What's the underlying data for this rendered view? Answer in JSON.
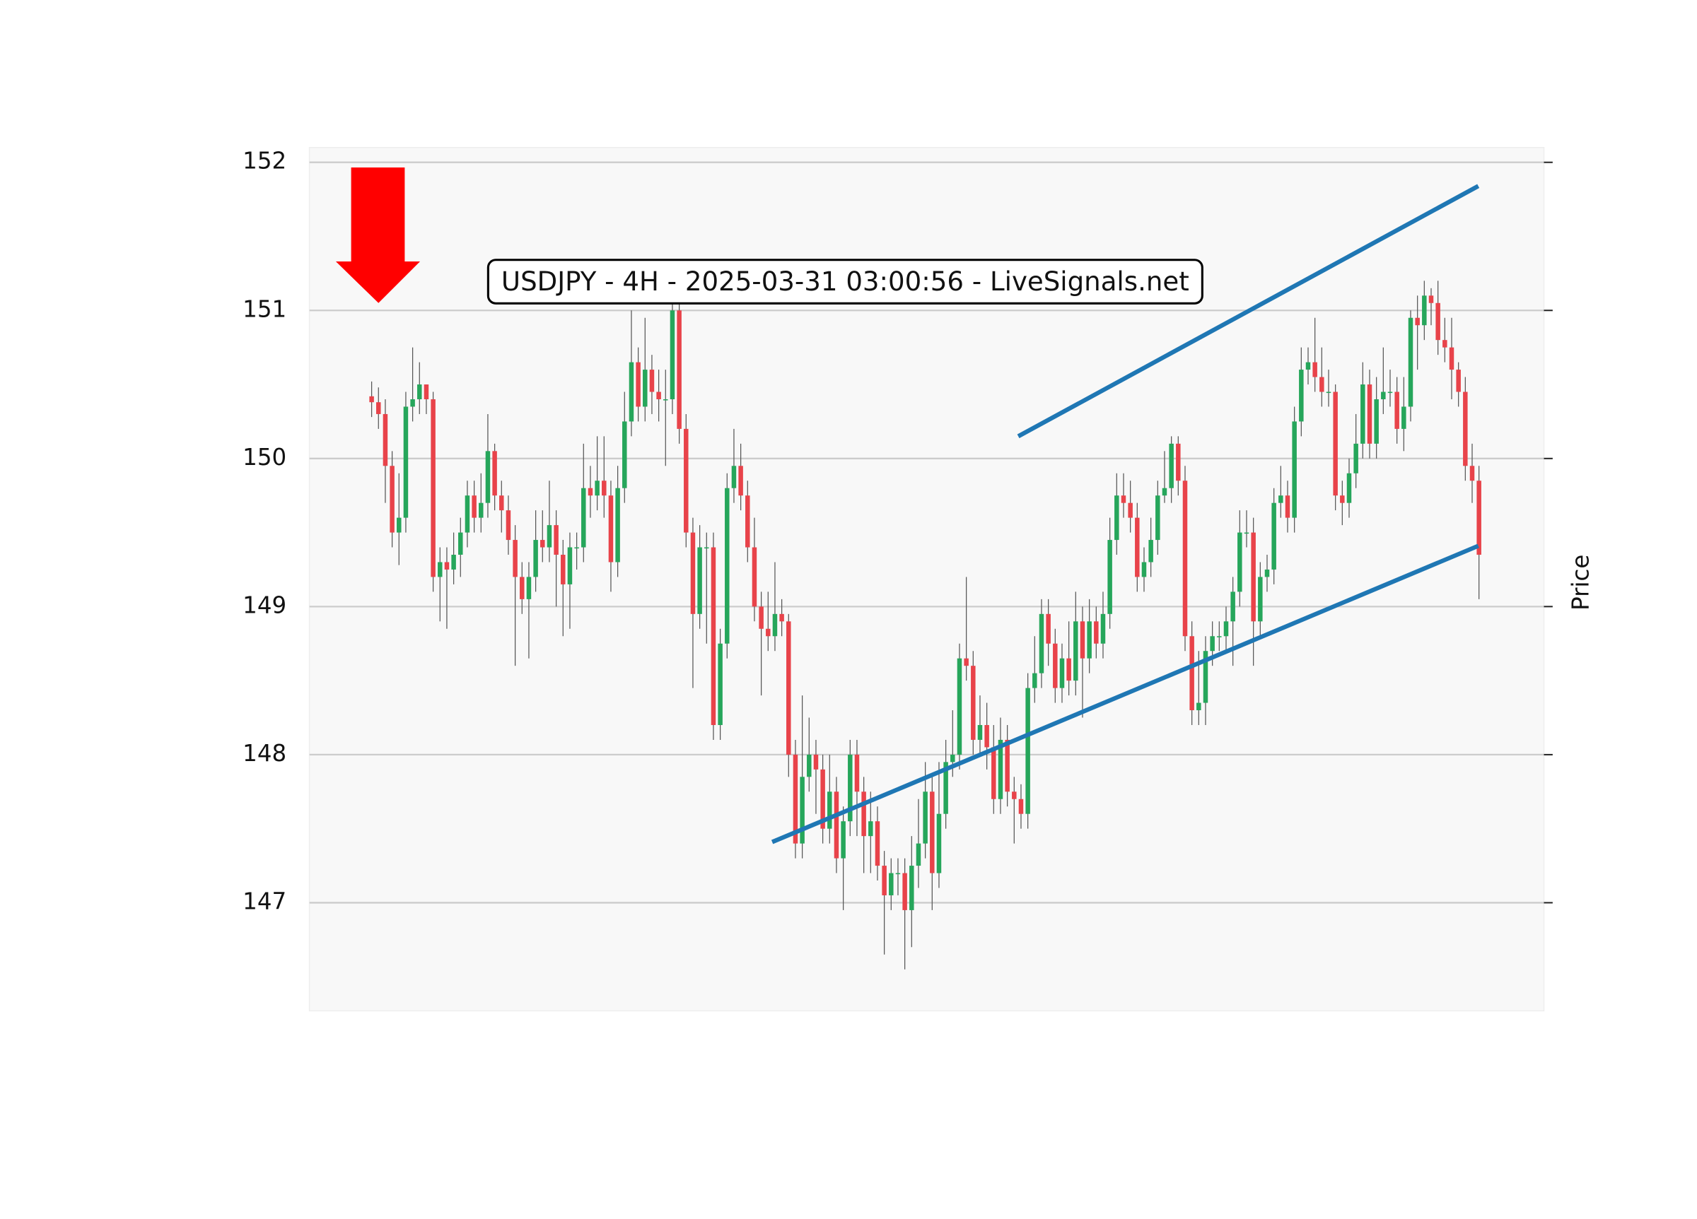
{
  "chart_data": {
    "type": "candlestick",
    "title": "USDJPY - 4H - 2025-03-31 03:00:56 - LiveSignals.net",
    "y_label": "Price",
    "up_color": "#26a65b",
    "down_color": "#e8434a",
    "grid": true,
    "xlim": [
      -9.1,
      171.5
    ],
    "ylim": [
      146.27,
      152.1
    ],
    "yticks": [
      147,
      148,
      149,
      150,
      151,
      152
    ],
    "open": [
      150.42,
      150.38,
      150.3,
      149.95,
      149.5,
      149.6,
      150.35,
      150.4,
      150.5,
      150.4,
      149.2,
      149.3,
      149.25,
      149.35,
      149.5,
      149.75,
      149.6,
      149.7,
      150.05,
      149.75,
      149.65,
      149.45,
      149.2,
      149.05,
      149.2,
      149.45,
      149.4,
      149.55,
      149.35,
      149.15,
      149.4,
      149.4,
      149.8,
      149.75,
      149.85,
      149.75,
      149.3,
      149.8,
      150.25,
      150.65,
      150.35,
      150.6,
      150.45,
      150.4,
      150.4,
      151.0,
      150.2,
      149.5,
      148.95,
      149.4,
      149.4,
      148.2,
      148.75,
      149.8,
      149.95,
      149.75,
      149.4,
      149.0,
      148.85,
      148.8,
      148.95,
      148.9,
      148.0,
      147.4,
      147.85,
      148.0,
      147.9,
      147.5,
      147.75,
      147.3,
      147.55,
      148.0,
      147.75,
      147.45,
      147.55,
      147.25,
      147.05,
      147.2,
      147.2,
      146.95,
      147.25,
      147.4,
      147.75,
      147.2,
      147.6,
      147.95,
      148.0,
      148.65,
      148.6,
      148.1,
      148.2,
      148.05,
      147.7,
      148.1,
      147.75,
      147.7,
      147.6,
      148.45,
      148.55,
      148.95,
      148.75,
      148.45,
      148.65,
      148.5,
      148.9,
      148.65,
      148.9,
      148.75,
      148.95,
      149.45,
      149.75,
      149.7,
      149.6,
      149.2,
      149.3,
      149.45,
      149.75,
      149.8,
      150.1,
      149.85,
      148.8,
      148.3,
      148.35,
      148.7,
      148.8,
      148.8,
      148.9,
      149.1,
      149.5,
      149.5,
      148.9,
      149.2,
      149.25,
      149.7,
      149.75,
      149.6,
      150.25,
      150.6,
      150.65,
      150.55,
      150.45,
      150.45,
      149.75,
      149.7,
      149.9,
      150.1,
      150.5,
      150.1,
      150.4,
      150.45,
      150.45,
      150.2,
      150.35,
      150.95,
      150.9,
      151.1,
      151.05,
      150.8,
      150.75,
      150.6,
      150.45,
      149.95,
      149.85
    ],
    "high": [
      150.52,
      150.48,
      150.4,
      150.05,
      149.9,
      150.45,
      150.75,
      150.65,
      150.5,
      150.45,
      149.4,
      149.4,
      149.5,
      149.6,
      149.85,
      149.85,
      149.9,
      150.3,
      150.1,
      149.85,
      149.75,
      149.55,
      149.3,
      149.3,
      149.65,
      149.65,
      149.85,
      149.65,
      149.45,
      149.5,
      149.5,
      150.1,
      149.95,
      150.15,
      150.15,
      149.85,
      149.95,
      150.45,
      151.0,
      150.75,
      150.95,
      150.7,
      150.6,
      150.6,
      151.1,
      151.05,
      150.3,
      149.6,
      149.55,
      149.5,
      149.5,
      148.85,
      149.9,
      150.2,
      150.1,
      149.85,
      149.6,
      149.1,
      149.1,
      149.3,
      149.05,
      148.95,
      148.1,
      148.4,
      148.25,
      148.1,
      148.0,
      148.0,
      147.85,
      147.65,
      148.1,
      148.1,
      147.85,
      147.75,
      147.65,
      147.35,
      147.3,
      147.3,
      147.3,
      147.45,
      147.7,
      147.95,
      147.85,
      147.95,
      148.1,
      148.3,
      148.75,
      149.2,
      148.7,
      148.4,
      148.35,
      148.2,
      148.25,
      148.2,
      147.85,
      147.8,
      148.55,
      148.8,
      149.05,
      149.05,
      148.85,
      148.75,
      148.9,
      149.1,
      149.0,
      149.05,
      149.0,
      149.1,
      149.6,
      149.9,
      149.9,
      149.85,
      149.7,
      149.4,
      149.6,
      149.85,
      150.05,
      150.15,
      150.15,
      149.95,
      148.9,
      148.7,
      148.8,
      148.9,
      148.9,
      149.0,
      149.2,
      149.65,
      149.65,
      149.6,
      149.3,
      149.35,
      149.8,
      149.95,
      149.85,
      150.35,
      150.75,
      150.75,
      150.95,
      150.75,
      150.6,
      150.5,
      149.85,
      150.0,
      150.3,
      150.65,
      150.6,
      150.55,
      150.75,
      150.6,
      150.55,
      150.55,
      151.0,
      151.1,
      151.2,
      151.15,
      151.2,
      150.95,
      150.95,
      150.65,
      150.55,
      150.1,
      149.95
    ],
    "low": [
      150.28,
      150.2,
      149.7,
      149.4,
      149.28,
      149.5,
      150.25,
      150.3,
      150.3,
      149.1,
      148.9,
      148.85,
      149.15,
      149.2,
      149.4,
      149.5,
      149.5,
      149.6,
      149.65,
      149.5,
      149.35,
      148.6,
      148.95,
      148.65,
      149.1,
      149.3,
      149.3,
      149.0,
      148.8,
      148.85,
      149.25,
      149.3,
      149.6,
      149.65,
      149.6,
      149.1,
      149.2,
      149.7,
      150.15,
      150.25,
      150.25,
      150.3,
      150.25,
      149.95,
      150.3,
      150.1,
      149.4,
      148.45,
      148.85,
      148.75,
      148.1,
      148.1,
      148.65,
      149.7,
      149.65,
      149.3,
      148.9,
      148.4,
      148.7,
      148.7,
      148.8,
      147.85,
      147.3,
      147.3,
      147.75,
      147.6,
      147.4,
      147.4,
      147.2,
      146.95,
      147.45,
      147.45,
      147.2,
      147.2,
      147.15,
      146.65,
      146.95,
      147.05,
      146.55,
      146.7,
      147.1,
      147.3,
      146.95,
      147.1,
      147.5,
      147.85,
      147.9,
      148.5,
      148.0,
      148.0,
      147.9,
      147.6,
      147.6,
      147.65,
      147.4,
      147.5,
      147.5,
      148.35,
      148.45,
      148.6,
      148.35,
      148.35,
      148.4,
      148.4,
      148.25,
      148.55,
      148.65,
      148.65,
      148.85,
      149.35,
      149.6,
      149.5,
      149.1,
      149.1,
      149.2,
      149.35,
      149.7,
      149.7,
      149.75,
      148.7,
      148.2,
      148.2,
      148.2,
      148.6,
      148.7,
      148.7,
      148.6,
      149.0,
      149.4,
      148.6,
      148.8,
      149.1,
      149.15,
      149.6,
      149.5,
      149.5,
      150.15,
      150.5,
      150.45,
      150.35,
      150.35,
      149.65,
      149.55,
      149.6,
      149.8,
      150.0,
      150.0,
      150.0,
      150.3,
      150.35,
      150.1,
      150.05,
      150.25,
      150.6,
      150.8,
      150.9,
      150.7,
      150.65,
      150.4,
      150.35,
      149.85,
      149.7,
      149.05
    ],
    "close": [
      150.38,
      150.3,
      149.95,
      149.5,
      149.6,
      150.35,
      150.4,
      150.5,
      150.4,
      149.2,
      149.3,
      149.25,
      149.35,
      149.5,
      149.75,
      149.6,
      149.7,
      150.05,
      149.75,
      149.65,
      149.45,
      149.2,
      149.05,
      149.2,
      149.45,
      149.4,
      149.55,
      149.35,
      149.15,
      149.4,
      149.4,
      149.8,
      149.75,
      149.85,
      149.75,
      149.3,
      149.8,
      150.25,
      150.65,
      150.35,
      150.6,
      150.45,
      150.4,
      150.4,
      151.0,
      150.2,
      149.5,
      148.95,
      149.4,
      149.4,
      148.2,
      148.75,
      149.8,
      149.95,
      149.75,
      149.4,
      149.0,
      148.85,
      148.8,
      148.95,
      148.9,
      148.0,
      147.4,
      147.85,
      148.0,
      147.9,
      147.5,
      147.75,
      147.3,
      147.55,
      148.0,
      147.75,
      147.45,
      147.55,
      147.25,
      147.05,
      147.2,
      147.2,
      146.95,
      147.25,
      147.4,
      147.75,
      147.2,
      147.6,
      147.95,
      148.0,
      148.65,
      148.6,
      148.1,
      148.2,
      148.05,
      147.7,
      148.1,
      147.75,
      147.7,
      147.6,
      148.45,
      148.55,
      148.95,
      148.75,
      148.45,
      148.65,
      148.5,
      148.9,
      148.65,
      148.9,
      148.75,
      148.95,
      149.45,
      149.75,
      149.7,
      149.6,
      149.2,
      149.3,
      149.45,
      149.75,
      149.8,
      150.1,
      149.85,
      148.8,
      148.3,
      148.35,
      148.7,
      148.8,
      148.8,
      148.9,
      149.1,
      149.5,
      149.5,
      148.9,
      149.2,
      149.25,
      149.7,
      149.75,
      149.6,
      150.25,
      150.6,
      150.65,
      150.55,
      150.45,
      150.45,
      149.75,
      149.7,
      149.9,
      150.1,
      150.5,
      150.1,
      150.4,
      150.45,
      150.45,
      150.2,
      150.35,
      150.95,
      150.9,
      151.1,
      151.05,
      150.8,
      150.75,
      150.6,
      150.45,
      149.95,
      149.85,
      149.35
    ],
    "trend_lines": [
      {
        "color": "#1f77b4",
        "x": [
          94.6,
          161.9
        ],
        "values": [
          150.15,
          151.84
        ]
      },
      {
        "color": "#1f77b4",
        "x": [
          58.6,
          161.9
        ],
        "values": [
          147.41,
          149.41
        ]
      }
    ],
    "signal": {
      "x": 1,
      "value": 151.05,
      "color": "#ff0000"
    }
  }
}
